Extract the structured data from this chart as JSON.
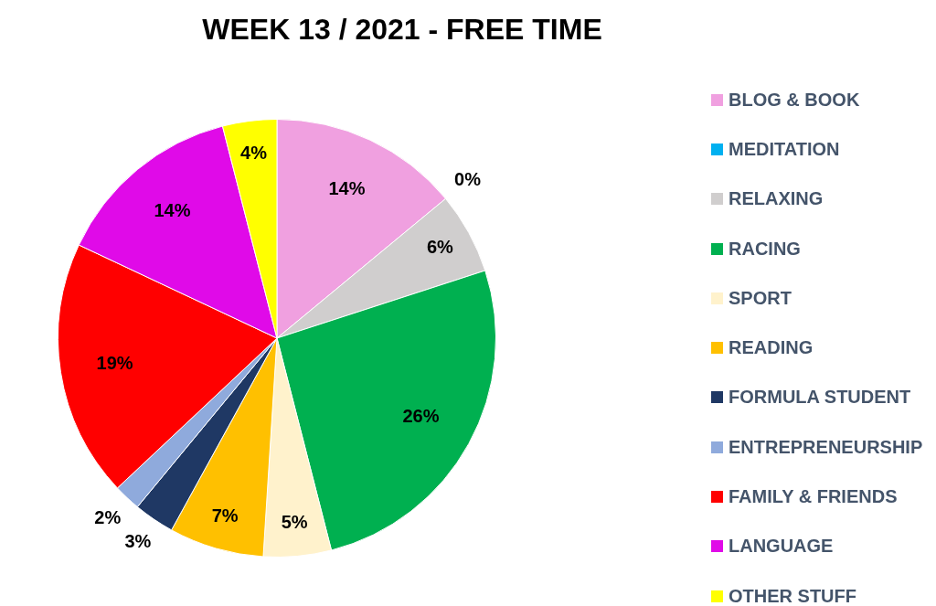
{
  "chart_data": {
    "type": "pie",
    "title": "WEEK 13 / 2021 - FREE TIME",
    "categories": [
      "BLOG & BOOK",
      "MEDITATION",
      "RELAXING",
      "RACING",
      "SPORT",
      "READING",
      "FORMULA STUDENT",
      "ENTREPRENEURSHIP",
      "FAMILY & FRIENDS",
      "LANGUAGE",
      "OTHER STUFF"
    ],
    "values": [
      14,
      0,
      6,
      26,
      5,
      7,
      3,
      2,
      19,
      14,
      4
    ],
    "colors": [
      "#f0a0e0",
      "#00b0f0",
      "#d0cece",
      "#00b050",
      "#fff2cc",
      "#ffc000",
      "#1f3864",
      "#8faadc",
      "#ff0000",
      "#e00ae8",
      "#ffff00"
    ],
    "value_labels": [
      "14%",
      "0%",
      "6%",
      "26%",
      "5%",
      "7%",
      "3%",
      "2%",
      "19%",
      "14%",
      "4%"
    ],
    "legend": "right"
  }
}
